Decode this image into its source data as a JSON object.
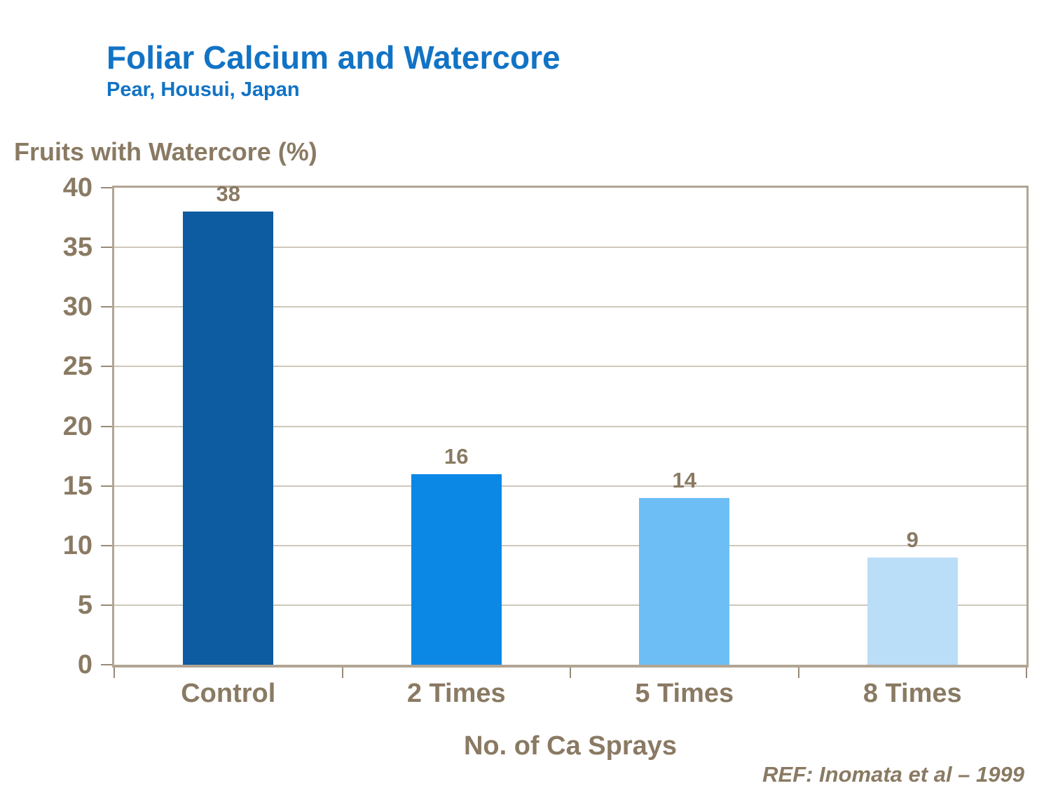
{
  "slide": {
    "title": "Foliar Calcium and Watercore",
    "subtitle": "Pear, Housui, Japan",
    "reference": "REF: Inomata et al – 1999"
  },
  "chart_data": {
    "type": "bar",
    "title": "Foliar Calcium and Watercore",
    "subtitle": "Pear, Housui, Japan",
    "categories": [
      "Control",
      "2 Times",
      "5 Times",
      "8 Times"
    ],
    "values": [
      38,
      16,
      14,
      9
    ],
    "value_labels": [
      "38",
      "16",
      "14",
      "9"
    ],
    "xlabel": "No. of Ca Sprays",
    "ylabel": "Fruits with Watercore (%)",
    "ylim": [
      0,
      40
    ],
    "yticks": [
      0,
      5,
      10,
      15,
      20,
      25,
      30,
      35,
      40
    ],
    "grid": true,
    "legend": "none",
    "annotation": "REF: Inomata et al – 1999",
    "bar_colors": [
      "#0d5ba1",
      "#0b87e6",
      "#6cbef4",
      "#bbdef8"
    ]
  },
  "colors": {
    "title_blue": "#1173c5",
    "text_brown": "#8a7a63",
    "gridline": "#cfc7bb",
    "plot_border": "#b1a594",
    "tick": "#998b77",
    "background": "#ffffff"
  }
}
